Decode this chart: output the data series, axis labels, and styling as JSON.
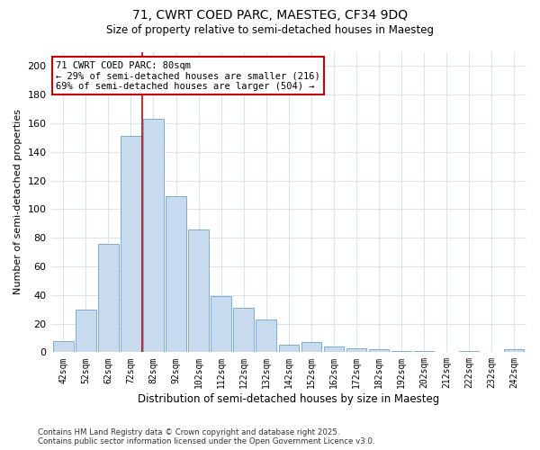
{
  "title1": "71, CWRT COED PARC, MAESTEG, CF34 9DQ",
  "title2": "Size of property relative to semi-detached houses in Maesteg",
  "xlabel": "Distribution of semi-detached houses by size in Maesteg",
  "ylabel": "Number of semi-detached properties",
  "bar_color": "#c8daee",
  "bar_edge_color": "#7aadd4",
  "categories": [
    "42sqm",
    "52sqm",
    "62sqm",
    "72sqm",
    "82sqm",
    "92sqm",
    "102sqm",
    "112sqm",
    "122sqm",
    "132sqm",
    "142sqm",
    "152sqm",
    "162sqm",
    "172sqm",
    "182sqm",
    "192sqm",
    "202sqm",
    "212sqm",
    "222sqm",
    "232sqm",
    "242sqm"
  ],
  "values": [
    8,
    30,
    76,
    151,
    163,
    109,
    86,
    39,
    31,
    23,
    5,
    7,
    4,
    3,
    2,
    1,
    1,
    0,
    1,
    0,
    2
  ],
  "ylim": [
    0,
    210
  ],
  "yticks": [
    0,
    20,
    40,
    60,
    80,
    100,
    120,
    140,
    160,
    180,
    200
  ],
  "annotation_title": "71 CWRT COED PARC: 80sqm",
  "annotation_line1": "← 29% of semi-detached houses are smaller (216)",
  "annotation_line2": "69% of semi-detached houses are larger (504) →",
  "red_line_color": "#cc0000",
  "annotation_box_facecolor": "#ffffff",
  "annotation_box_edgecolor": "#cc0000",
  "footnote1": "Contains HM Land Registry data © Crown copyright and database right 2025.",
  "footnote2": "Contains public sector information licensed under the Open Government Licence v3.0.",
  "background_color": "#ffffff",
  "grid_color": "#d8e4f0"
}
